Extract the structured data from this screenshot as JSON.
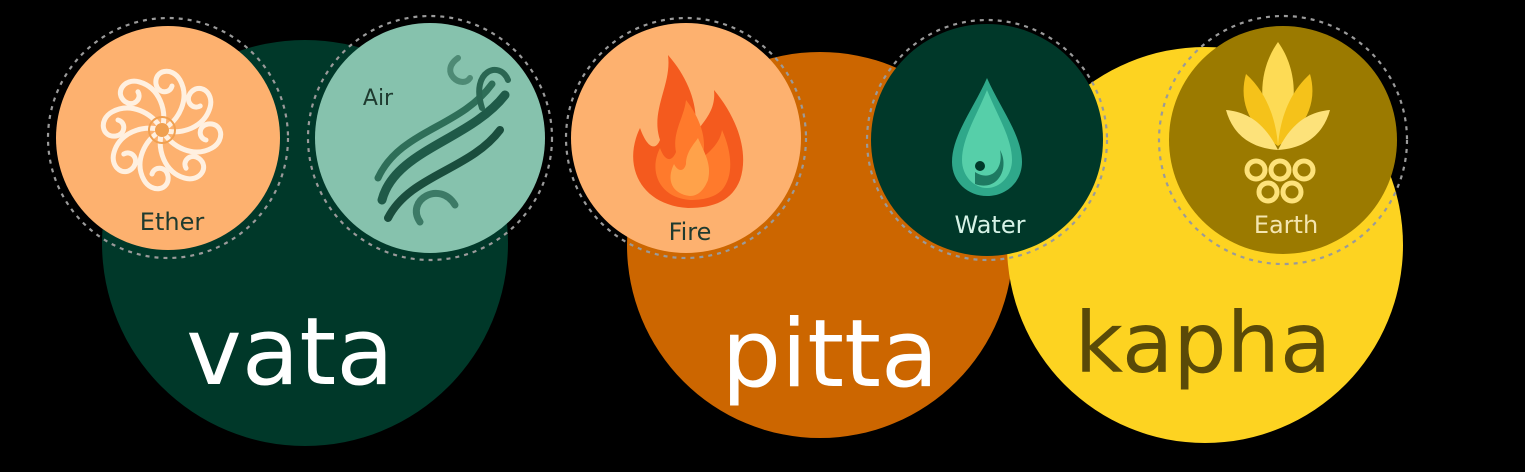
{
  "doshas": [
    {
      "name": "vata",
      "color": "#003829",
      "text_color": "#ffffff"
    },
    {
      "name": "pitta",
      "color": "#cc6600",
      "text_color": "#ffffff"
    },
    {
      "name": "kapha",
      "color": "#fdd321",
      "text_color": "#5a4a08"
    }
  ],
  "elements": [
    {
      "label": "Ether",
      "icon": "spiral-flower-icon",
      "color": "#fdb16f",
      "text_color": "#1e3a2f"
    },
    {
      "label": "Air",
      "icon": "wind-swirl-icon",
      "color": "#86c2ad",
      "text_color": "#1e3a2f"
    },
    {
      "label": "Fire",
      "icon": "flame-icon",
      "color": "#fdb16f",
      "text_color": "#1e3a2f"
    },
    {
      "label": "Water",
      "icon": "water-drop-icon",
      "color": "#003829",
      "text_color": "#d6f2e6"
    },
    {
      "label": "Earth",
      "icon": "leaf-seeds-icon",
      "color": "#9b7a00",
      "text_color": "#f4e6b0"
    }
  ]
}
